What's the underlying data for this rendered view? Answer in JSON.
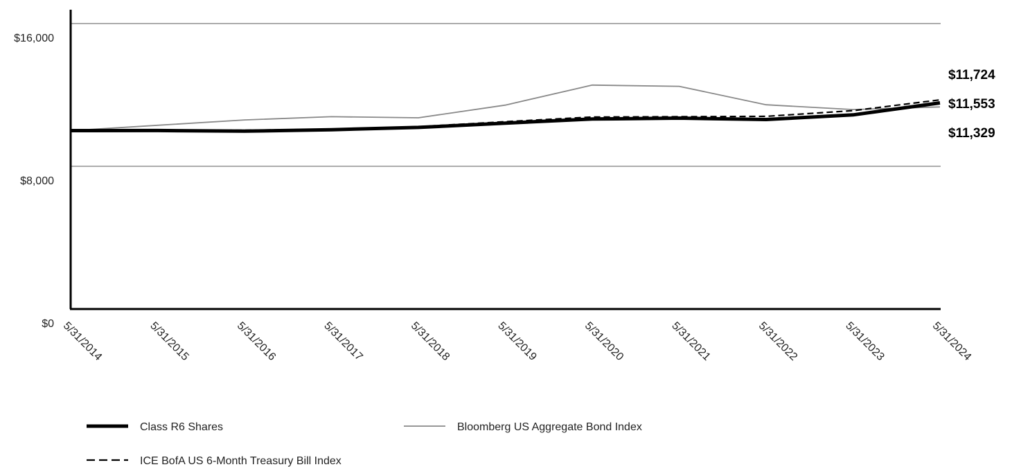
{
  "chart_data": {
    "type": "line",
    "title": "",
    "xlabel": "",
    "ylabel": "",
    "categories": [
      "5/31/2014",
      "5/31/2015",
      "5/31/2016",
      "5/31/2017",
      "5/31/2018",
      "5/31/2019",
      "5/31/2020",
      "5/31/2021",
      "5/31/2022",
      "5/31/2023",
      "5/31/2024"
    ],
    "ylim": [
      0,
      16000
    ],
    "yticks": [
      0,
      8000,
      16000
    ],
    "ytick_labels": [
      "$0",
      "$8,000",
      "$16,000"
    ],
    "grid": "horizontal",
    "legend_placement": "bottom",
    "series": [
      {
        "name": "Class R6 Shares",
        "style": "thick-solid",
        "color": "#000000",
        "values": [
          10000,
          10005,
          9970,
          10050,
          10180,
          10420,
          10650,
          10700,
          10620,
          10880,
          11553
        ]
      },
      {
        "name": "Bloomberg US Aggregate Bond Index",
        "style": "thin-solid",
        "color": "#888888",
        "values": [
          10000,
          10300,
          10600,
          10780,
          10720,
          11430,
          12550,
          12480,
          11450,
          11180,
          11329
        ]
      },
      {
        "name": "ICE BofA US 6-Month Treasury Bill Index",
        "style": "dashed",
        "color": "#000000",
        "values": [
          10000,
          10010,
          10020,
          10080,
          10220,
          10500,
          10760,
          10780,
          10800,
          11120,
          11724
        ]
      }
    ],
    "end_labels": [
      "$11,724",
      "$11,553",
      "$11,329"
    ]
  }
}
